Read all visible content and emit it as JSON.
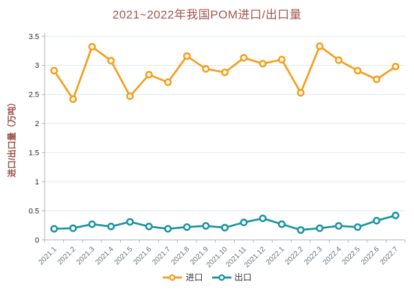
{
  "chart_data": {
    "type": "line",
    "title": "2021~2022年我国POM进口/出口量",
    "ylabel": "进口/出口量（万吨）",
    "xlabel": "",
    "categories": [
      "2021.1",
      "2021.2",
      "2021.3",
      "2021.4",
      "2021.5",
      "2021.6",
      "2021.7",
      "2021.8",
      "2021.9",
      "2021.10",
      "2021.11",
      "2021.12",
      "2022.1",
      "2022.2",
      "2022.3",
      "2022.4",
      "2022.5",
      "2022.6",
      "2022.7"
    ],
    "series": [
      {
        "key": "import",
        "name": "进口",
        "color": "#F49E1B",
        "marker": "open-circle",
        "values": [
          2.91,
          2.42,
          3.32,
          3.08,
          2.47,
          2.84,
          2.71,
          3.16,
          2.94,
          2.88,
          3.13,
          3.03,
          3.1,
          2.53,
          3.33,
          3.09,
          2.91,
          2.76,
          2.98
        ]
      },
      {
        "key": "export",
        "name": "出口",
        "color": "#1A94A0",
        "marker": "open-circle",
        "values": [
          0.19,
          0.2,
          0.27,
          0.23,
          0.31,
          0.23,
          0.19,
          0.22,
          0.24,
          0.21,
          0.3,
          0.37,
          0.27,
          0.17,
          0.2,
          0.24,
          0.22,
          0.33,
          0.42
        ]
      }
    ],
    "ylim": [
      0,
      3.5
    ],
    "ytick_step": 0.5,
    "ytick_labels": [
      "0",
      "0.5",
      "1",
      "1.5",
      "2",
      "2.5",
      "3",
      "3.5"
    ],
    "grid": true,
    "legend_position": "bottom",
    "style": {
      "title_color": "#A1554C",
      "axis_title_color": "#9C4F45",
      "grid_color": "#DBE8EF",
      "axis_color": "#AAB2B8",
      "ytick_color": "#262626",
      "xtick_color": "#63707B",
      "legend_text_color": "#333333",
      "marker_fill": "#FFFFFF"
    }
  }
}
